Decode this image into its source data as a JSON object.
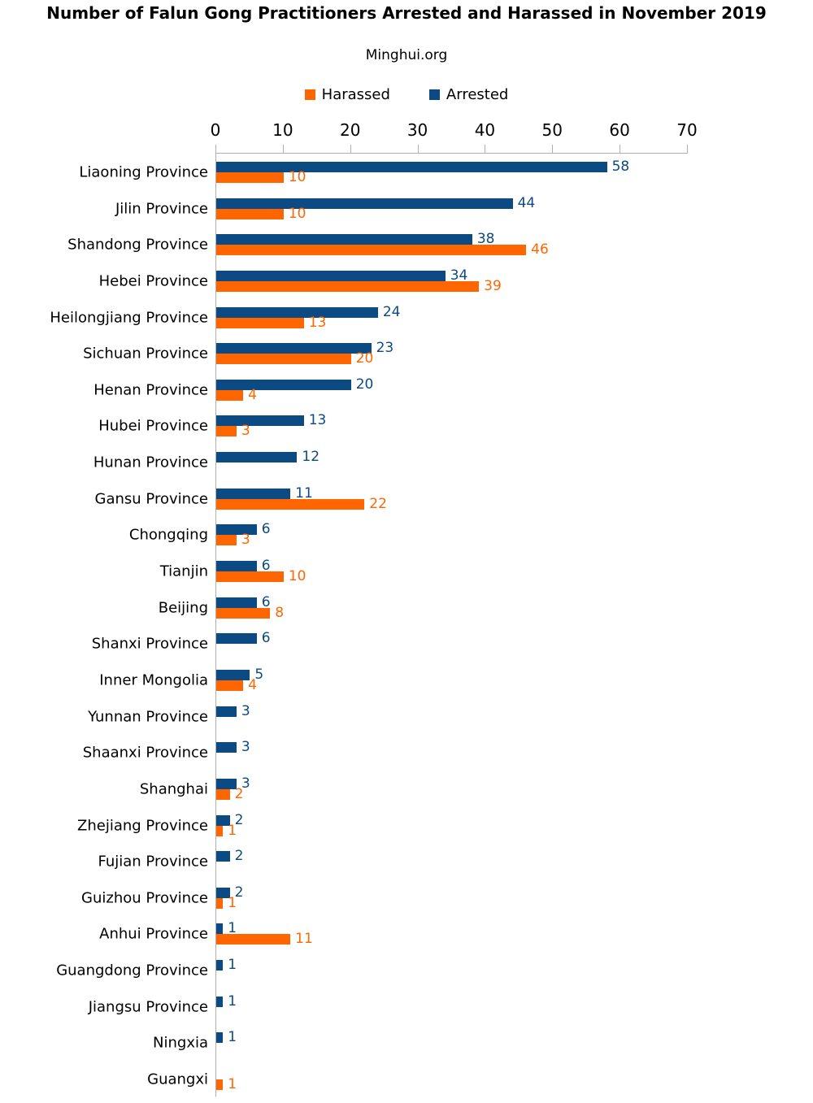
{
  "title": "Number of Falun Gong Practitioners Arrested and Harassed in November 2019",
  "subtitle": "Minghui.org",
  "legend": {
    "items": [
      {
        "label": "Harassed",
        "color": "#FF6600"
      },
      {
        "label": "Arrested",
        "color": "#0B4A82"
      }
    ]
  },
  "colors": {
    "arrested": "#0B4A82",
    "harassed": "#FF6600",
    "axis": "#b0b0b0",
    "text": "#000000"
  },
  "chart_data": {
    "type": "bar",
    "orientation": "horizontal",
    "title": "Number of Falun Gong Practitioners Arrested and Harassed in November 2019",
    "subtitle": "Minghui.org",
    "xlabel": "",
    "ylabel": "",
    "xlim": [
      0,
      70
    ],
    "x_ticks": [
      0,
      10,
      20,
      30,
      40,
      50,
      60,
      70
    ],
    "grid": false,
    "legend_position": "top",
    "legend_order": [
      "Harassed",
      "Arrested"
    ],
    "data_labels": true,
    "categories": [
      "Liaoning Province",
      "Jilin Province",
      "Shandong Province",
      "Hebei Province",
      "Heilongjiang Province",
      "Sichuan Province",
      "Henan Province",
      "Hubei Province",
      "Hunan Province",
      "Gansu Province",
      "Chongqing",
      "Tianjin",
      "Beijing",
      "Shanxi Province",
      "Inner Mongolia",
      "Yunnan Province",
      "Shaanxi Province",
      "Shanghai",
      "Zhejiang Province",
      "Fujian Province",
      "Guizhou Province",
      "Anhui Province",
      "Guangdong Province",
      "Jiangsu Province",
      "Ningxia",
      "Guangxi"
    ],
    "series": [
      {
        "name": "Arrested",
        "color": "#0B4A82",
        "values": [
          58,
          44,
          38,
          34,
          24,
          23,
          20,
          13,
          12,
          11,
          6,
          6,
          6,
          6,
          5,
          3,
          3,
          3,
          2,
          2,
          2,
          1,
          1,
          1,
          1,
          0
        ]
      },
      {
        "name": "Harassed",
        "color": "#FF6600",
        "values": [
          10,
          10,
          46,
          39,
          13,
          20,
          4,
          3,
          0,
          22,
          3,
          10,
          8,
          0,
          4,
          0,
          0,
          2,
          1,
          0,
          1,
          11,
          0,
          0,
          0,
          1
        ]
      }
    ]
  }
}
